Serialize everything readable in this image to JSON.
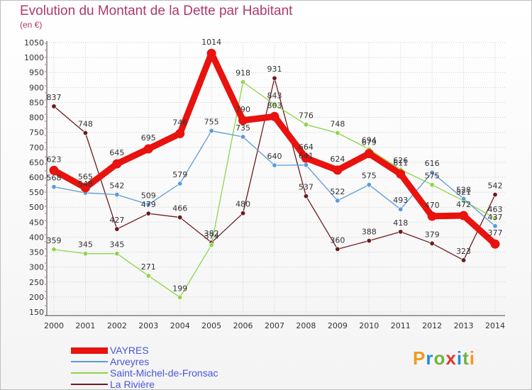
{
  "title": "Evolution du Montant de la Dette par Habitant",
  "subtitle": "(en €)",
  "logo": {
    "text": "Proxiti",
    "colors": [
      "#f29a1e",
      "#1f8dd6",
      "#6fb43f",
      "#e6332a",
      "#1f8dd6",
      "#6fb43f",
      "#f29a1e"
    ]
  },
  "chart_data": {
    "type": "line",
    "x": [
      2000,
      2001,
      2002,
      2003,
      2004,
      2005,
      2006,
      2007,
      2008,
      2009,
      2010,
      2011,
      2012,
      2013,
      2014
    ],
    "ylim": [
      150,
      1050
    ],
    "yticks": [
      150,
      200,
      250,
      300,
      350,
      400,
      450,
      500,
      550,
      600,
      650,
      700,
      750,
      800,
      850,
      900,
      950,
      1000,
      1050
    ],
    "grid": true,
    "legend_position": "bottom-left",
    "series": [
      {
        "name": "La Rivière",
        "color": "#6b1a1f",
        "width": 1.3,
        "values": [
          837,
          748,
          427,
          479,
          466,
          382,
          480,
          931,
          537,
          360,
          388,
          418,
          379,
          323,
          542
        ],
        "labels": [
          "837",
          "748",
          "427",
          "479",
          "466",
          "382",
          "480",
          "931",
          "537",
          "360",
          "388",
          "418",
          "379",
          "323",
          "542"
        ]
      },
      {
        "name": "Saint-Michel-de-Fronsac",
        "color": "#8fd44b",
        "width": 1.3,
        "values": [
          359,
          345,
          345,
          271,
          199,
          374,
          918,
          843,
          776,
          748,
          694,
          626,
          575,
          521,
          463
        ],
        "labels": [
          "359",
          "345",
          "345",
          "271",
          "199",
          "374",
          "918",
          "843",
          "776",
          "748",
          "694",
          "626",
          "575",
          "521",
          "463"
        ]
      },
      {
        "name": "Arveyres",
        "color": "#5b9bd8",
        "width": 1.3,
        "values": [
          568,
          548,
          542,
          509,
          579,
          755,
          735,
          640,
          641,
          522,
          575,
          493,
          616,
          528,
          437
        ],
        "labels": [
          "568",
          "548",
          "542",
          "509",
          "579",
          "755",
          "735",
          "640",
          "641",
          "522",
          "575",
          "493",
          "616",
          "528",
          "437"
        ]
      },
      {
        "name": "VAYRES",
        "color": "#e8120e",
        "width": 9,
        "values": [
          623,
          565,
          645,
          695,
          746,
          1014,
          790,
          803,
          664,
          624,
          679,
          611,
          470,
          472,
          377
        ],
        "labels": [
          "623",
          "565",
          "645",
          "695",
          "746",
          "1014",
          "790",
          "803",
          "664",
          "624",
          "679",
          "611",
          "470",
          "472",
          "377"
        ]
      }
    ]
  },
  "legend": [
    {
      "name": "VAYRES",
      "color": "#e8120e",
      "width": 9
    },
    {
      "name": "Arveyres",
      "color": "#5b9bd8",
      "width": 1.5
    },
    {
      "name": "Saint-Michel-de-Fronsac",
      "color": "#8fd44b",
      "width": 1.5
    },
    {
      "name": "La Rivière",
      "color": "#6b1a1f",
      "width": 1.5
    }
  ]
}
